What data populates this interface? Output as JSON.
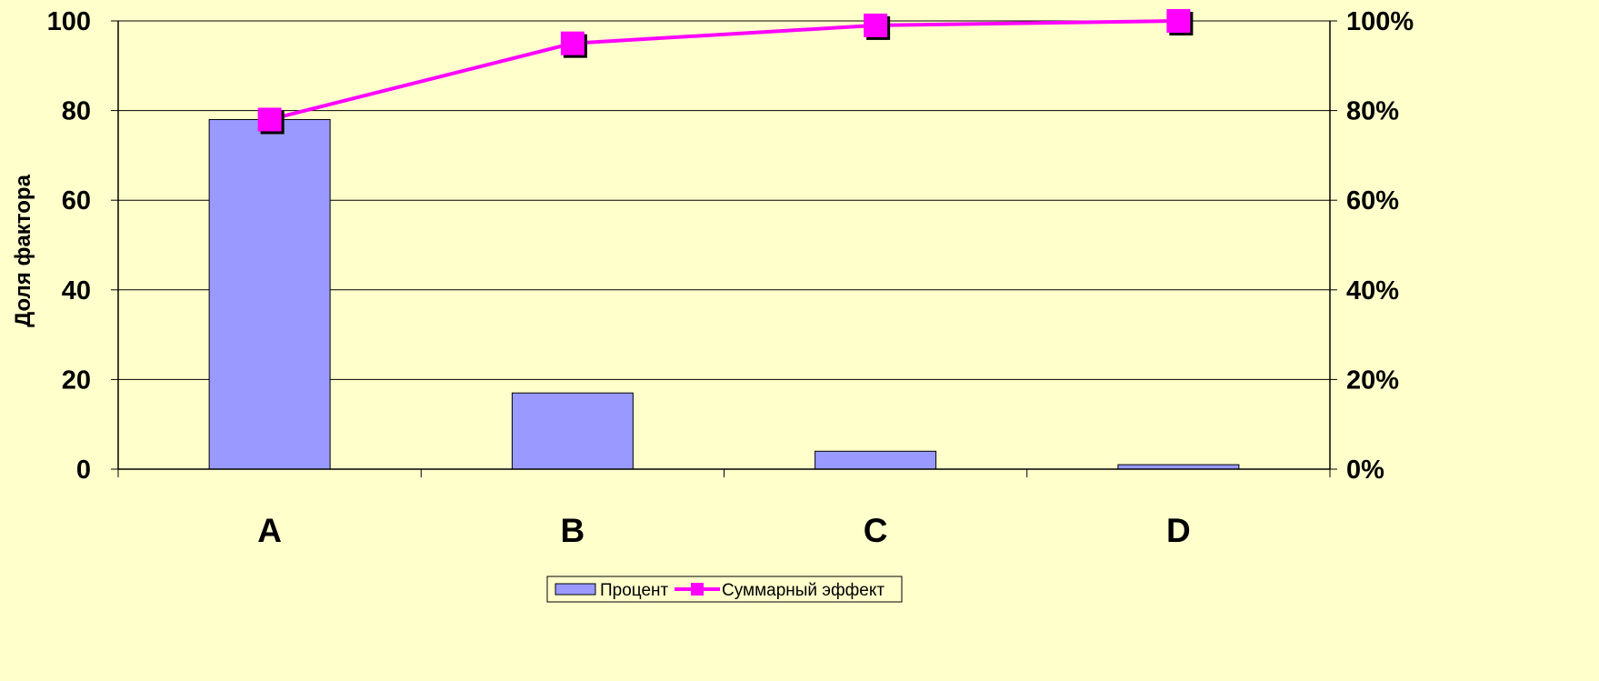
{
  "chart_data": {
    "type": "bar",
    "title": "",
    "xlabel": "",
    "ylabel": "Доля фактора",
    "y2label": "",
    "categories": [
      "A",
      "B",
      "C",
      "D"
    ],
    "series": [
      {
        "name": "Процент",
        "type": "bar",
        "axis": "left",
        "values": [
          78,
          17,
          4,
          1
        ],
        "color": "#9999ff"
      },
      {
        "name": "Суммарный эффект",
        "type": "line",
        "axis": "right",
        "values": [
          0.78,
          0.95,
          0.99,
          1.0
        ],
        "color": "#ff00ff"
      }
    ],
    "ylim": [
      0,
      100
    ],
    "yticks": [
      "0",
      "20",
      "40",
      "60",
      "80",
      "100"
    ],
    "y2lim": [
      0,
      1
    ],
    "y2ticks": [
      "0%",
      "20%",
      "40%",
      "60%",
      "80%",
      "100%"
    ],
    "grid": true,
    "legend": "bottom-center",
    "colors": {
      "background": "#ffffcc",
      "bar_fill": "#9999ff",
      "bar_stroke": "#000000",
      "line": "#ff00ff",
      "marker_shadow": "#000000",
      "grid": "#000000"
    }
  }
}
